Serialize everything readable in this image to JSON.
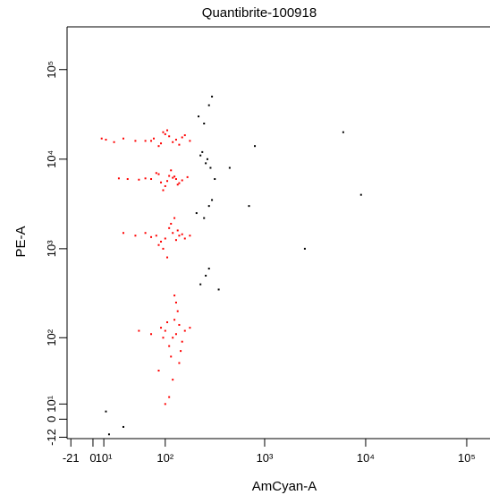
{
  "chart_data": {
    "type": "scatter",
    "title": "Quantibrite-100918",
    "x_label": "AmCyan-A",
    "y_label": "PE-A",
    "xscale": "biexponential",
    "yscale": "biexponential",
    "xlim": [
      -25,
      170000
    ],
    "ylim": [
      -13,
      300000
    ],
    "xticks": [
      -21,
      0,
      {
        "value": 10,
        "label": "10¹"
      },
      {
        "value": 100,
        "label": "10²"
      },
      {
        "value": 1000,
        "label": "10³"
      },
      {
        "value": 10000,
        "label": "10⁴"
      },
      {
        "value": 100000,
        "label": "10⁵"
      }
    ],
    "yticks": [
      -12,
      0,
      {
        "value": 10,
        "label": "10¹"
      },
      {
        "value": 100,
        "label": "10²"
      },
      {
        "value": 1000,
        "label": "10³"
      },
      {
        "value": 10000,
        "label": "10⁴"
      },
      {
        "value": 100000,
        "label": "10⁵"
      }
    ],
    "series": [
      {
        "color": "#ff0000",
        "x": [
          60,
          75,
          90,
          110,
          130,
          150,
          85,
          100,
          120,
          70,
          95,
          140,
          160,
          45,
          30,
          20,
          12,
          8,
          105,
          180,
          70,
          90,
          110,
          130,
          150,
          80,
          100,
          120,
          60,
          140,
          170,
          50,
          35,
          25,
          95,
          115,
          135,
          85,
          105,
          125,
          80,
          100,
          120,
          140,
          90,
          110,
          130,
          150,
          70,
          160,
          60,
          45,
          95,
          115,
          135,
          105,
          125,
          85,
          180,
          30,
          100,
          120,
          140,
          110,
          130,
          90,
          150,
          125,
          115,
          135,
          105,
          145,
          95,
          160,
          85,
          120,
          130,
          110,
          140,
          125,
          70,
          50,
          180,
          100
        ],
        "y": [
          16000,
          17000,
          15000,
          18000,
          16500,
          17500,
          14000,
          19000,
          15500,
          16000,
          20000,
          14500,
          18500,
          16000,
          17000,
          15500,
          16500,
          17000,
          21000,
          16000,
          6000,
          5500,
          6500,
          6000,
          5800,
          7000,
          5000,
          6200,
          6100,
          5400,
          6300,
          5900,
          6000,
          6100,
          4500,
          7500,
          5200,
          6800,
          5700,
          6400,
          1400,
          1300,
          1500,
          1400,
          1200,
          1700,
          1250,
          1450,
          1350,
          1300,
          1500,
          1400,
          1000,
          1900,
          1600,
          800,
          2200,
          1100,
          1400,
          1500,
          120,
          100,
          140,
          80,
          110,
          130,
          90,
          160,
          60,
          200,
          150,
          70,
          100,
          120,
          40,
          30,
          250,
          15,
          50,
          300,
          110,
          120,
          130,
          10
        ]
      },
      {
        "color": "#000000",
        "x": [
          220,
          250,
          280,
          300,
          240,
          260,
          230,
          270,
          320,
          290,
          210,
          250,
          280,
          300,
          800,
          2500,
          6000,
          9000,
          450,
          700,
          260,
          230,
          280,
          350,
          12,
          30,
          15
        ],
        "y": [
          30000,
          25000,
          40000,
          50000,
          12000,
          9000,
          11000,
          10000,
          6000,
          8000,
          2500,
          2200,
          3000,
          3500,
          14000,
          1000,
          20000,
          4000,
          8000,
          3000,
          500,
          400,
          600,
          350,
          5,
          -5,
          -10
        ]
      }
    ]
  }
}
